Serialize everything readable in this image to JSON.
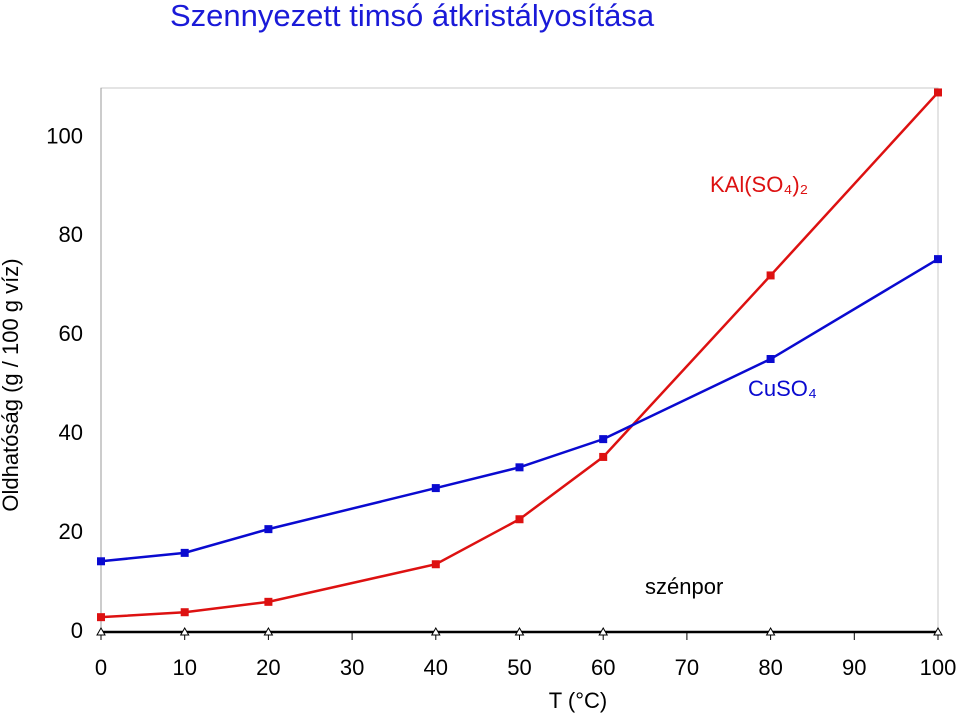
{
  "chart_data": {
    "type": "line",
    "title": "Szennyezett timsó átkristályosítása",
    "y_label": "Oldhatóság (g / 100 g víz)",
    "x_label": "T (°C)",
    "x": [
      0,
      10,
      20,
      40,
      50,
      60,
      80,
      100
    ],
    "series": [
      {
        "name": "KAl(SO₄)₂",
        "color": "#dd1111",
        "marker": "square",
        "values": [
          3,
          4,
          6.1,
          13.7,
          22.8,
          35.4,
          72.1,
          109.1
        ]
      },
      {
        "name": "CuSO₄",
        "color": "#0a0ad0",
        "marker": "square",
        "values": [
          14.3,
          16,
          20.8,
          29.1,
          33.3,
          39,
          55.2,
          75.4
        ]
      },
      {
        "name": "szénpor",
        "color": "#000000",
        "marker": "triangle",
        "values": [
          0,
          0,
          0,
          0,
          0,
          0,
          0,
          0
        ]
      }
    ],
    "xlim": [
      0,
      100
    ],
    "ylim": [
      0,
      110
    ],
    "xticks": [
      0,
      10,
      20,
      30,
      40,
      50,
      60,
      70,
      80,
      90,
      100
    ],
    "yticks": [
      0,
      20,
      40,
      60,
      80,
      100
    ]
  }
}
